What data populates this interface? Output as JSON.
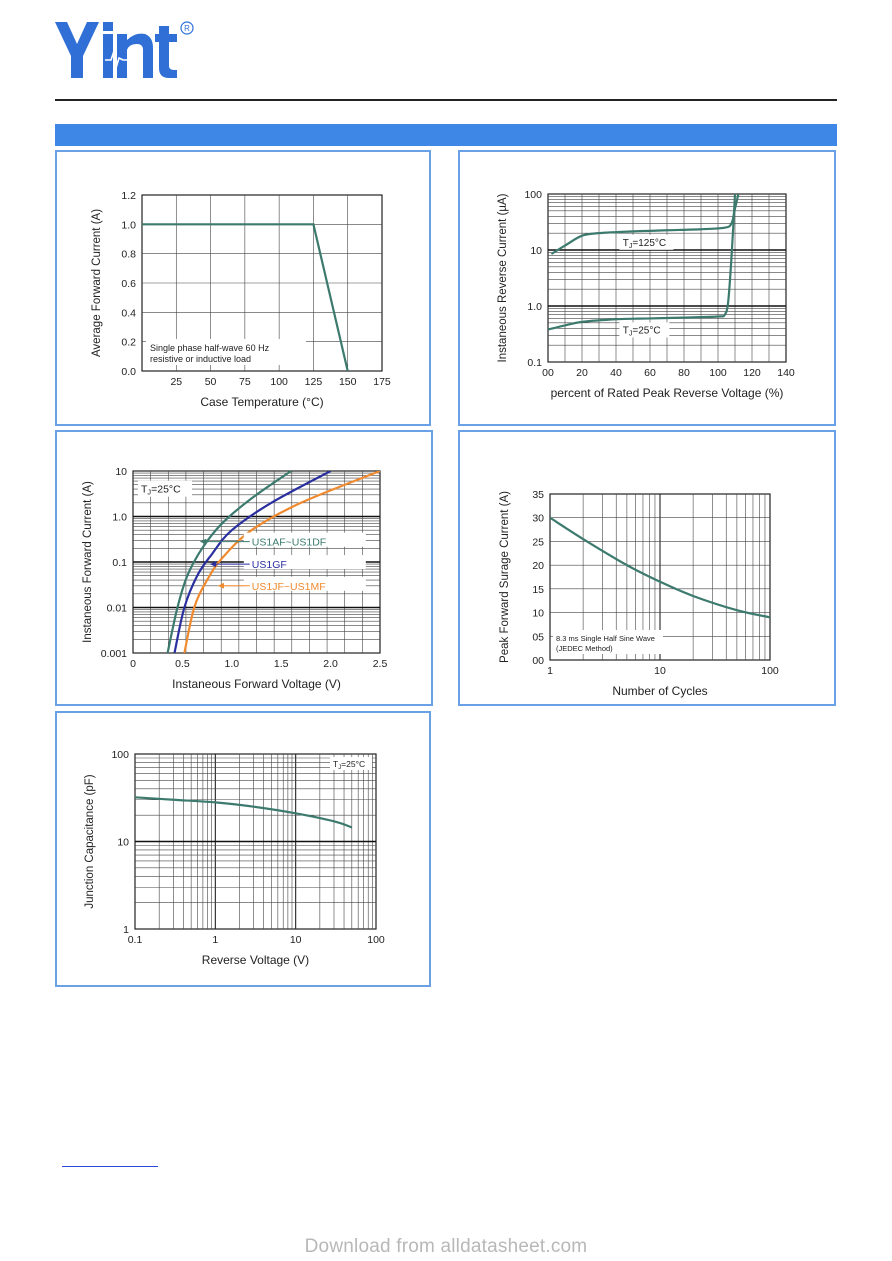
{
  "header": {
    "brand_colors": {
      "logo": "#2f6fd6",
      "band": "#3f87e6",
      "panel_border": "#6aa0e6"
    }
  },
  "footer": {
    "watermark": "Download from alldatasheet.com"
  },
  "chart_data": [
    {
      "id": "derating",
      "type": "line",
      "xlabel": "Case Temperature (°C)",
      "ylabel": "Average Forward Current (A)",
      "xlim": [
        0,
        175
      ],
      "ylim": [
        0,
        1.2
      ],
      "xticks": [
        25,
        50,
        75,
        100,
        125,
        150,
        175
      ],
      "yticks": [
        0.0,
        0.2,
        0.4,
        0.6,
        0.8,
        1.0,
        1.2
      ],
      "grid": true,
      "annotations": [
        "Single phase half-wave 60 Hz",
        "resistive or inductive load"
      ],
      "series": [
        {
          "x": [
            0,
            125,
            150
          ],
          "y": [
            1.0,
            1.0,
            0
          ]
        }
      ]
    },
    {
      "id": "reverse",
      "type": "line",
      "xlabel": "percent of Rated Peak Reverse Voltage (%)",
      "ylabel": "Instaneous Reverse Current (µA)",
      "xlim": [
        0,
        140
      ],
      "ylim": [
        0.1,
        100
      ],
      "yscale": "log",
      "xticks": [
        "00",
        "20",
        "40",
        "60",
        "80",
        "100",
        "120",
        "140"
      ],
      "yticks": [
        "0.1",
        "1.0",
        "10",
        "100"
      ],
      "grid": true,
      "series": [
        {
          "name": "TJ=125°C",
          "x": [
            2,
            10,
            20,
            30,
            50,
            70,
            90,
            104,
            108,
            110,
            112
          ],
          "y": [
            8.5,
            12,
            18,
            20,
            21.5,
            22.5,
            23.5,
            25,
            30,
            55,
            100
          ]
        },
        {
          "name": "TJ=25°C",
          "x": [
            0,
            10,
            20,
            40,
            60,
            80,
            100,
            104,
            106,
            108,
            110
          ],
          "y": [
            0.38,
            0.45,
            0.52,
            0.58,
            0.6,
            0.62,
            0.65,
            0.7,
            1.2,
            8,
            100
          ]
        }
      ]
    },
    {
      "id": "forward",
      "type": "line",
      "xlabel": "Instaneous Forward Voltage (V)",
      "ylabel": "Instaneous Forward Current (A)",
      "xlim": [
        0,
        2.5
      ],
      "ylim": [
        0.001,
        10
      ],
      "yscale": "log",
      "xticks": [
        "0",
        "0.5",
        "1.0",
        "1.5",
        "2.0",
        "2.5"
      ],
      "yticks": [
        "0.001",
        "0.01",
        "0.1",
        "1.0",
        "10"
      ],
      "grid": true,
      "annotations": [
        "TJ=25°C"
      ],
      "series": [
        {
          "name": "US1AF~US1DF",
          "color": "#3c7a6e",
          "x": [
            0.35,
            0.45,
            0.55,
            0.7,
            0.9,
            1.2,
            1.6
          ],
          "y": [
            0.001,
            0.01,
            0.05,
            0.2,
            0.7,
            2.5,
            10
          ]
        },
        {
          "name": "US1GF",
          "color": "#2a2fa0",
          "x": [
            0.42,
            0.52,
            0.65,
            0.8,
            1.0,
            1.4,
            2.0
          ],
          "y": [
            0.001,
            0.01,
            0.05,
            0.15,
            0.5,
            2.0,
            10
          ]
        },
        {
          "name": "US1JF~US1MF",
          "color": "#f08a2e",
          "x": [
            0.52,
            0.62,
            0.75,
            0.9,
            1.2,
            1.7,
            2.5
          ],
          "y": [
            0.001,
            0.01,
            0.04,
            0.12,
            0.5,
            2.0,
            10
          ]
        }
      ]
    },
    {
      "id": "surge",
      "type": "line",
      "xlabel": "Number of Cycles",
      "ylabel": "Peak Forward Surage Current (A)",
      "xlim": [
        1,
        100
      ],
      "ylim": [
        0,
        35
      ],
      "xscale": "log",
      "xticks": [
        "1",
        "10",
        "100"
      ],
      "yticks": [
        "00",
        "05",
        "10",
        "15",
        "20",
        "25",
        "30",
        "35"
      ],
      "grid": true,
      "annotations": [
        "8.3 ms Single Half Sine Wave",
        "(JEDEC Method)"
      ],
      "series": [
        {
          "x": [
            1,
            2,
            5,
            10,
            20,
            50,
            100
          ],
          "y": [
            30,
            25.5,
            20,
            16.5,
            13.5,
            10.5,
            9
          ]
        }
      ]
    },
    {
      "id": "capacitance",
      "type": "line",
      "xlabel": "Reverse Voltage (V)",
      "ylabel": "Junction Capacitance (pF)",
      "xlim": [
        0.1,
        100
      ],
      "ylim": [
        1,
        100
      ],
      "xscale": "log",
      "yscale": "log",
      "xticks": [
        "0.1",
        "1",
        "10",
        "100"
      ],
      "yticks": [
        "1",
        "10",
        "100"
      ],
      "grid": true,
      "annotations": [
        "TJ=25°C"
      ],
      "series": [
        {
          "x": [
            0.1,
            0.3,
            1,
            3,
            10,
            30,
            50
          ],
          "y": [
            32,
            30,
            28,
            25,
            21,
            17,
            14.5
          ]
        }
      ]
    }
  ]
}
